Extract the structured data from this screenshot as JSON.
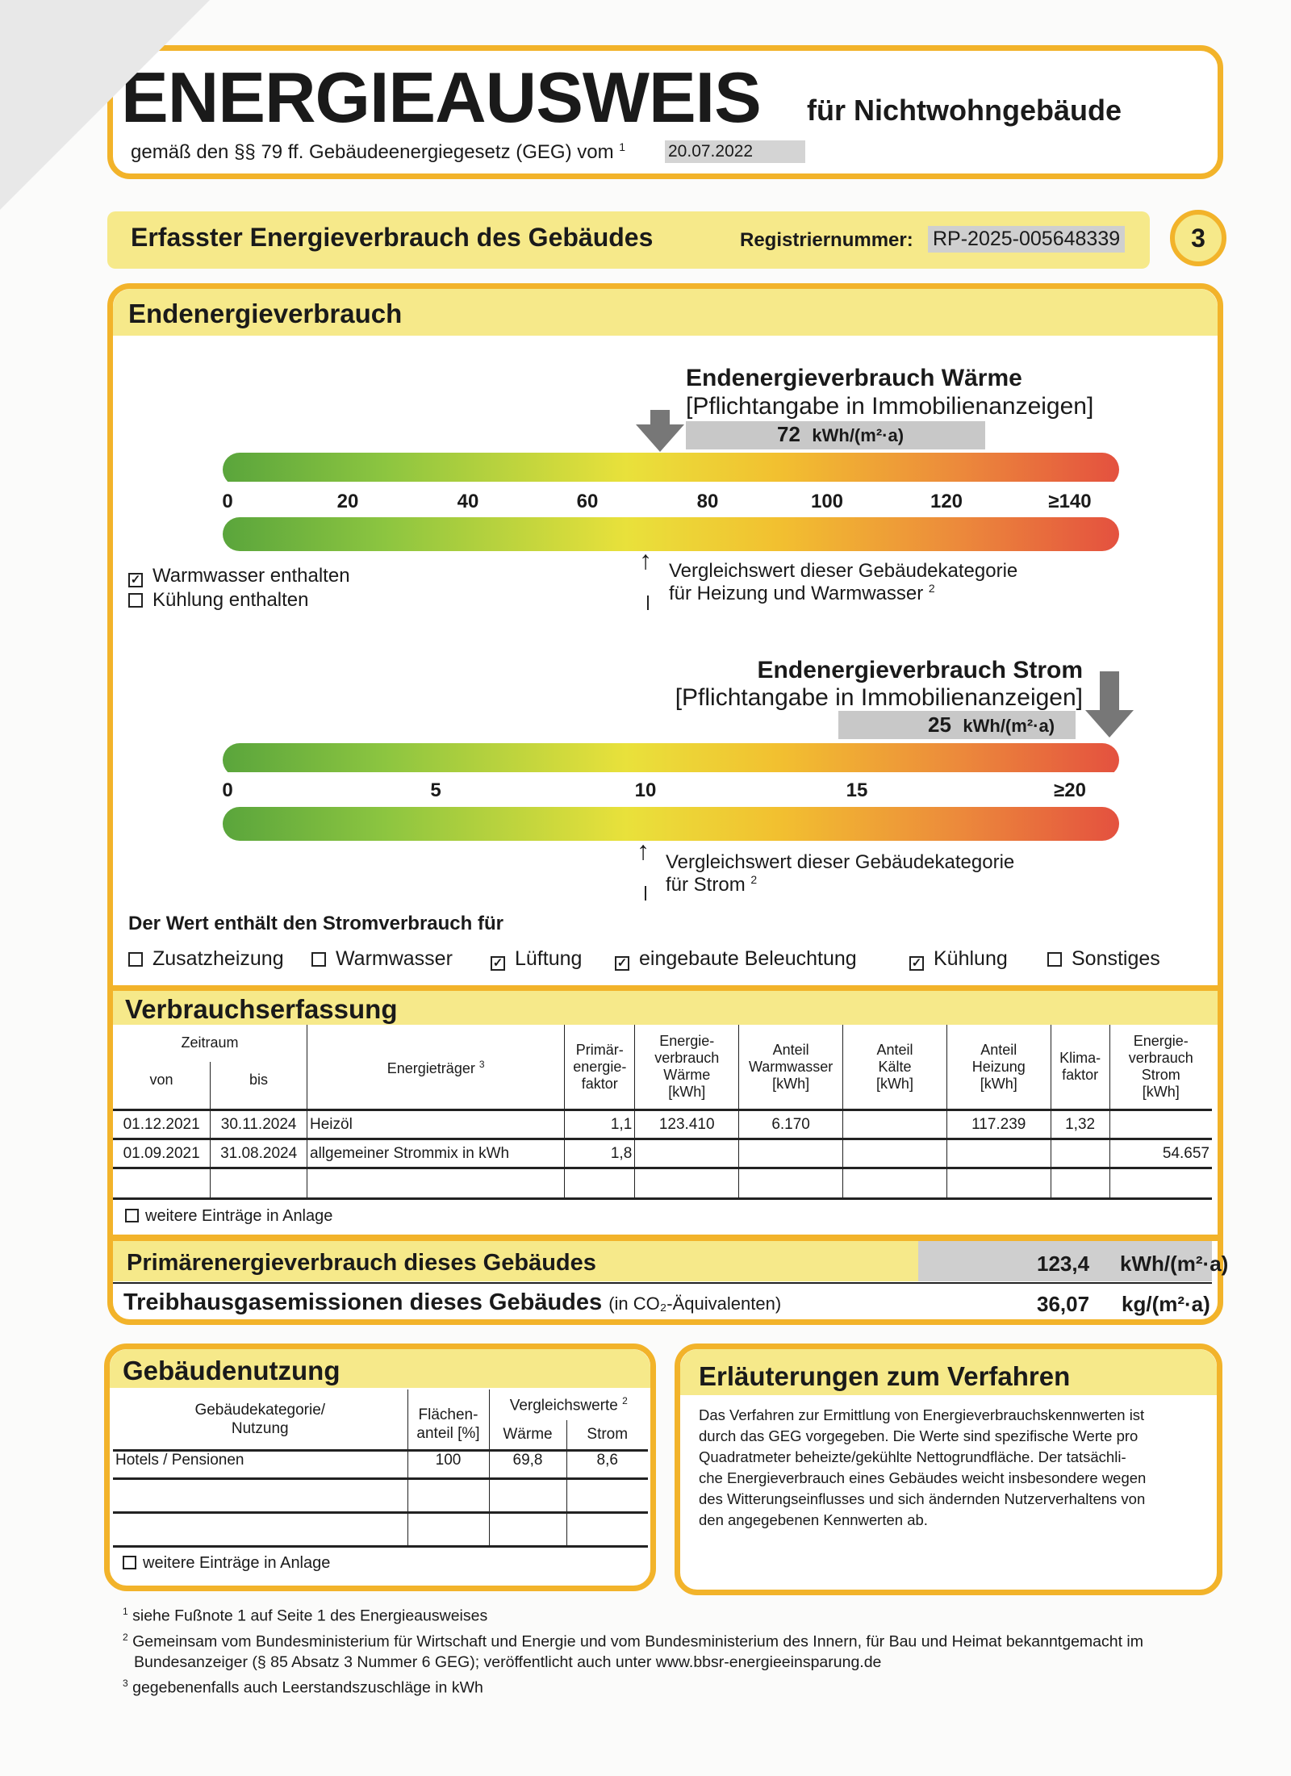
{
  "header": {
    "title": "ENERGIEAUSWEIS",
    "subtitle": "für Nichtwohngebäude",
    "legal": "gemäß den §§ 79 ff. Gebäudeenergiegesetz (GEG) vom",
    "legal_footnote": "1",
    "date": "20.07.2022"
  },
  "section": {
    "title": "Erfasster Energieverbrauch des Gebäudes",
    "reg_label": "Registriernummer:",
    "reg_number": "RP-2025-005648339",
    "page_number": "3"
  },
  "endenergie": {
    "title": "Endenergieverbrauch",
    "waerme": {
      "title": "Endenergieverbrauch Wärme",
      "note": "[Pflichtangabe in Immobilienanzeigen]",
      "value": "72",
      "unit": "kWh/(m²·a)",
      "ticks": [
        "0",
        "20",
        "40",
        "60",
        "80",
        "100",
        "120",
        "≥140"
      ],
      "compare_text_1": "Vergleichswert dieser Gebäudekategorie",
      "compare_text_2": "für Heizung und Warmwasser",
      "compare_footnote": "2",
      "compare_value": 69.8
    },
    "checks": [
      {
        "label": "Warmwasser enthalten",
        "checked": true
      },
      {
        "label": "Kühlung enthalten",
        "checked": false
      }
    ],
    "strom": {
      "title": "Endenergieverbrauch Strom",
      "note": "[Pflichtangabe in Immobilienanzeigen]",
      "value": "25",
      "unit": "kWh/(m²·a)",
      "ticks": [
        "0",
        "5",
        "10",
        "15",
        "≥20"
      ],
      "compare_text_1": "Vergleichswert dieser Gebäudekategorie",
      "compare_text_2": "für Strom",
      "compare_footnote": "2",
      "compare_value": 8.6
    },
    "strom_includes_label": "Der Wert enthält den Stromverbrauch für",
    "strom_includes": [
      {
        "label": "Zusatzheizung",
        "checked": false
      },
      {
        "label": "Warmwasser",
        "checked": false
      },
      {
        "label": "Lüftung",
        "checked": true
      },
      {
        "label": "eingebaute Beleuchtung",
        "checked": true
      },
      {
        "label": "Kühlung",
        "checked": true
      },
      {
        "label": "Sonstiges",
        "checked": false
      }
    ]
  },
  "verbrauch": {
    "title": "Verbrauchserfassung",
    "headers": {
      "zeitraum": "Zeitraum",
      "von": "von",
      "bis": "bis",
      "traeger": "Energieträger",
      "traeger_fn": "3",
      "primaer": "Primär-\nenergie-\nfaktor",
      "waerme": "Energie-\nverbrauch\nWärme\n[kWh]",
      "ww": "Anteil\nWarmwasser\n[kWh]",
      "kaelte": "Anteil\nKälte\n[kWh]",
      "heizung": "Anteil\nHeizung\n[kWh]",
      "klima": "Klima-\nfaktor",
      "strom": "Energie-\nverbrauch\nStrom\n[kWh]"
    },
    "rows": [
      {
        "von": "01.12.2021",
        "bis": "30.11.2024",
        "traeger": "Heizöl",
        "primaer": "1,1",
        "waerme": "123.410",
        "ww": "6.170",
        "kaelte": "",
        "heizung": "117.239",
        "klima": "1,32",
        "strom": ""
      },
      {
        "von": "01.09.2021",
        "bis": "31.08.2024",
        "traeger": "allgemeiner Strommix in kWh",
        "primaer": "1,8",
        "waerme": "",
        "ww": "",
        "kaelte": "",
        "heizung": "",
        "klima": "",
        "strom": "54.657"
      }
    ],
    "more_entries": "weitere Einträge in Anlage"
  },
  "summary": {
    "primaer_label": "Primärenergieverbrauch dieses Gebäudes",
    "primaer_value": "123,4",
    "primaer_unit": "kWh/(m²·a)",
    "thg_label": "Treibhausgasemissionen dieses Gebäudes",
    "thg_note": "(in CO₂-Äquivalenten)",
    "thg_value": "36,07",
    "thg_unit": "kg/(m²·a)"
  },
  "nutzung": {
    "title": "Gebäudenutzung",
    "h_kategorie": "Gebäudekategorie/\nNutzung",
    "h_flaeche": "Flächen-\nanteil [%]",
    "h_vergleich": "Vergleichswerte",
    "h_vergleich_fn": "2",
    "h_waerme": "Wärme",
    "h_strom": "Strom",
    "rows": [
      {
        "kategorie": "Hotels / Pensionen",
        "flaeche": "100",
        "waerme": "69,8",
        "strom": "8,6"
      }
    ],
    "more_entries": "weitere Einträge in Anlage"
  },
  "erlaeuterung": {
    "title": "Erläuterungen zum Verfahren",
    "lines": [
      "Das Verfahren zur Ermittlung von Energieverbrauchskennwerten ist",
      "durch das GEG vorgegeben. Die Werte sind spezifische Werte pro",
      "Quadratmeter beheizte/gekühlte Nettogrundfläche. Der tatsächli-",
      "che Energieverbrauch eines Gebäudes weicht insbesondere wegen",
      "des Witterungseinflusses und sich ändernden Nutzerverhaltens von",
      "den angegebenen Kennwerten ab."
    ]
  },
  "footnotes": [
    {
      "n": "1",
      "text": "siehe Fußnote 1 auf Seite 1 des Energieausweises"
    },
    {
      "n": "2",
      "text": "Gemeinsam vom Bundesministerium für Wirtschaft und Energie und vom Bundesministerium des Innern, für Bau und Heimat bekanntgemacht im"
    },
    {
      "n": "",
      "text": "Bundesanzeiger (§ 85 Absatz 3 Nummer 6 GEG); veröffentlicht auch unter www.bbsr-energieeinsparung.de"
    },
    {
      "n": "3",
      "text": "gegebenenfalls auch Leerstandszuschläge in kWh"
    }
  ],
  "colors": {
    "frame": "#f2b32a",
    "header_fill": "#f6e98a",
    "value_box": "#c8c8c8"
  }
}
